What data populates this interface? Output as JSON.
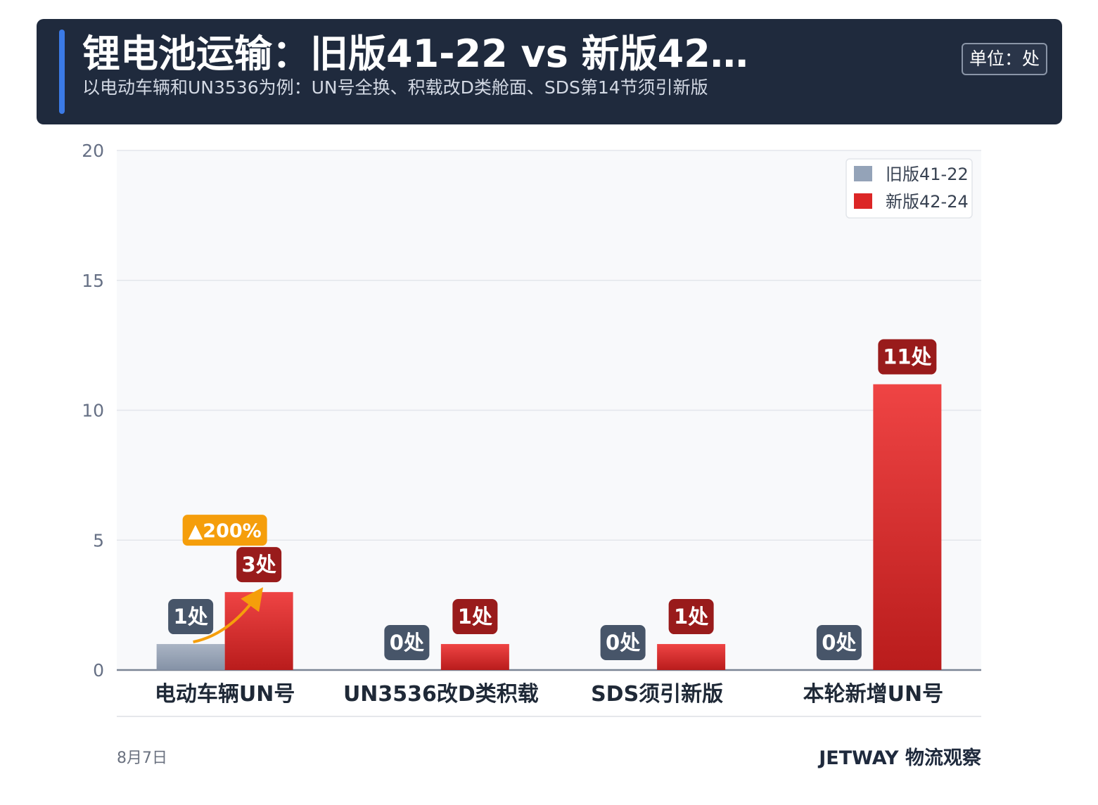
{
  "header": {
    "title": "锂电池运输：旧版41-22 vs 新版42…",
    "subtitle": "以电动车辆和UN3536为例：UN号全换、积载改D类舱面、SDS第14节须引新版",
    "unit": "单位：处"
  },
  "chart_data": {
    "type": "bar",
    "categories": [
      "电动车辆UN号",
      "UN3536改D类积载",
      "SDS须引新版",
      "本轮新增UN号"
    ],
    "series": [
      {
        "name": "旧版41-22",
        "values": [
          1,
          0,
          0,
          0
        ],
        "color": "#94a3b8"
      },
      {
        "name": "新版42-24",
        "values": [
          3,
          1,
          1,
          11
        ],
        "color": "#dc2626"
      }
    ],
    "data_labels": {
      "旧版41-22": [
        "1处",
        "0处",
        "0处",
        "0处"
      ],
      "新版42-24": [
        "3处",
        "1处",
        "1处",
        "11处"
      ]
    },
    "annotations": [
      {
        "text": "▲200%",
        "category": "电动车辆UN号",
        "color": "#f59e0b"
      }
    ],
    "ylim": [
      0,
      20
    ],
    "yticks": [
      0,
      5,
      10,
      15,
      20
    ],
    "grid": true,
    "legend_position": "top-right",
    "xlabel": "",
    "ylabel": ""
  },
  "footer": {
    "date": "8月7日",
    "brand": "JETWAY 物流观察"
  }
}
